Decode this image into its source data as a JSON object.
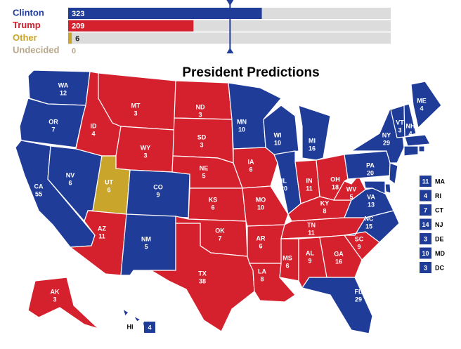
{
  "tally": {
    "xlim": [
      0,
      538
    ],
    "threshold": 270,
    "rows": [
      {
        "name": "Clinton",
        "value": 323,
        "color": "#1f3c98"
      },
      {
        "name": "Trump",
        "value": 209,
        "color": "#d5202e"
      },
      {
        "name": "Other",
        "value": 6,
        "color": "#c9a62b"
      },
      {
        "name": "Undecided",
        "value": 0,
        "color": "#b8a78a"
      }
    ]
  },
  "title": "President Predictions",
  "states": [
    {
      "abbr": "WA",
      "votes": 12,
      "winner": "Clinton"
    },
    {
      "abbr": "OR",
      "votes": 7,
      "winner": "Clinton"
    },
    {
      "abbr": "CA",
      "votes": 55,
      "winner": "Clinton"
    },
    {
      "abbr": "NV",
      "votes": 6,
      "winner": "Clinton"
    },
    {
      "abbr": "ID",
      "votes": 4,
      "winner": "Trump"
    },
    {
      "abbr": "MT",
      "votes": 3,
      "winner": "Trump"
    },
    {
      "abbr": "WY",
      "votes": 3,
      "winner": "Trump"
    },
    {
      "abbr": "UT",
      "votes": 6,
      "winner": "Other"
    },
    {
      "abbr": "CO",
      "votes": 9,
      "winner": "Clinton"
    },
    {
      "abbr": "AZ",
      "votes": 11,
      "winner": "Trump"
    },
    {
      "abbr": "NM",
      "votes": 5,
      "winner": "Clinton"
    },
    {
      "abbr": "ND",
      "votes": 3,
      "winner": "Trump"
    },
    {
      "abbr": "SD",
      "votes": 3,
      "winner": "Trump"
    },
    {
      "abbr": "NE",
      "votes": 5,
      "winner": "Trump"
    },
    {
      "abbr": "KS",
      "votes": 6,
      "winner": "Trump"
    },
    {
      "abbr": "OK",
      "votes": 7,
      "winner": "Trump"
    },
    {
      "abbr": "TX",
      "votes": 38,
      "winner": "Trump"
    },
    {
      "abbr": "MN",
      "votes": 10,
      "winner": "Clinton"
    },
    {
      "abbr": "IA",
      "votes": 6,
      "winner": "Trump"
    },
    {
      "abbr": "MO",
      "votes": 10,
      "winner": "Trump"
    },
    {
      "abbr": "AR",
      "votes": 6,
      "winner": "Trump"
    },
    {
      "abbr": "LA",
      "votes": 8,
      "winner": "Trump"
    },
    {
      "abbr": "WI",
      "votes": 10,
      "winner": "Clinton"
    },
    {
      "abbr": "IL",
      "votes": 20,
      "winner": "Clinton"
    },
    {
      "abbr": "MI",
      "votes": 16,
      "winner": "Clinton"
    },
    {
      "abbr": "IN",
      "votes": 11,
      "winner": "Trump"
    },
    {
      "abbr": "OH",
      "votes": 18,
      "winner": "Trump"
    },
    {
      "abbr": "KY",
      "votes": 8,
      "winner": "Trump"
    },
    {
      "abbr": "TN",
      "votes": 11,
      "winner": "Trump"
    },
    {
      "abbr": "MS",
      "votes": 6,
      "winner": "Trump"
    },
    {
      "abbr": "AL",
      "votes": 9,
      "winner": "Trump"
    },
    {
      "abbr": "GA",
      "votes": 16,
      "winner": "Trump"
    },
    {
      "abbr": "FL",
      "votes": 29,
      "winner": "Clinton"
    },
    {
      "abbr": "SC",
      "votes": 9,
      "winner": "Trump"
    },
    {
      "abbr": "NC",
      "votes": 15,
      "winner": "Clinton"
    },
    {
      "abbr": "VA",
      "votes": 13,
      "winner": "Clinton"
    },
    {
      "abbr": "WV",
      "votes": 5,
      "winner": "Trump"
    },
    {
      "abbr": "PA",
      "votes": 20,
      "winner": "Clinton"
    },
    {
      "abbr": "NY",
      "votes": 29,
      "winner": "Clinton"
    },
    {
      "abbr": "VT",
      "votes": 3,
      "winner": "Clinton"
    },
    {
      "abbr": "NH",
      "votes": 4,
      "winner": "Clinton"
    },
    {
      "abbr": "ME",
      "votes": 4,
      "winner": "Clinton"
    },
    {
      "abbr": "AK",
      "votes": 3,
      "winner": "Trump"
    },
    {
      "abbr": "HI",
      "votes": 4,
      "winner": "Clinton"
    }
  ],
  "small_states": [
    {
      "abbr": "MA",
      "votes": 11,
      "winner": "Clinton"
    },
    {
      "abbr": "RI",
      "votes": 4,
      "winner": "Clinton"
    },
    {
      "abbr": "CT",
      "votes": 7,
      "winner": "Clinton"
    },
    {
      "abbr": "NJ",
      "votes": 14,
      "winner": "Clinton"
    },
    {
      "abbr": "DE",
      "votes": 3,
      "winner": "Clinton"
    },
    {
      "abbr": "MD",
      "votes": 10,
      "winner": "Clinton"
    },
    {
      "abbr": "DC",
      "votes": 3,
      "winner": "Clinton"
    }
  ]
}
